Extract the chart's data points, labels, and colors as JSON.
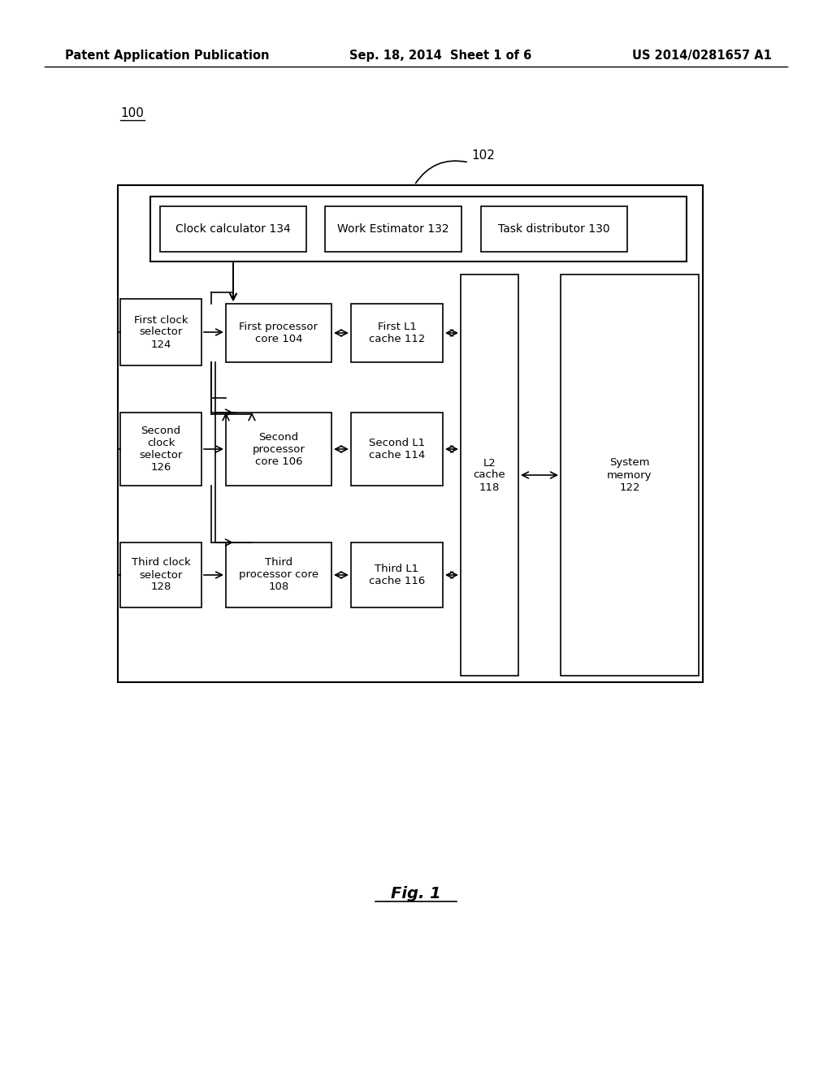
{
  "bg_color": "#ffffff",
  "header_left": "Patent Application Publication",
  "header_center": "Sep. 18, 2014  Sheet 1 of 6",
  "header_right": "US 2014/0281657 A1",
  "label_100": "100",
  "label_102": "102",
  "fig_label": "Fig. 1"
}
